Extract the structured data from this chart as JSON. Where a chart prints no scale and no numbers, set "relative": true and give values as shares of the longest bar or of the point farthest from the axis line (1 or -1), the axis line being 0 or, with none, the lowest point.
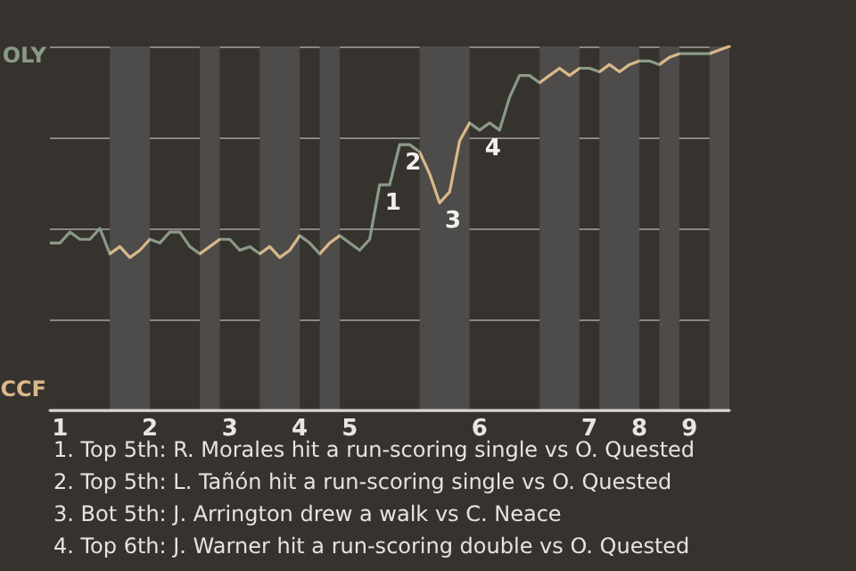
{
  "chart_data": {
    "type": "line",
    "categories": [
      null,
      "1",
      null,
      null,
      null,
      null,
      null,
      null,
      null,
      null,
      "2",
      null,
      null,
      null,
      null,
      null,
      null,
      null,
      "3",
      null,
      null,
      null,
      null,
      null,
      null,
      "4",
      null,
      null,
      null,
      null,
      "5",
      null,
      null,
      null,
      null,
      null,
      null,
      null,
      null,
      null,
      null,
      null,
      null,
      "6",
      null,
      null,
      null,
      null,
      null,
      null,
      null,
      null,
      null,
      null,
      "7",
      null,
      null,
      null,
      null,
      "8",
      null,
      null,
      null,
      null,
      "9",
      null,
      null,
      null,
      null
    ],
    "relative": true,
    "values": [
      0.46,
      0.46,
      0.49,
      0.47,
      0.47,
      0.5,
      0.43,
      0.45,
      0.42,
      0.44,
      0.47,
      0.46,
      0.49,
      0.49,
      0.45,
      0.43,
      0.45,
      0.47,
      0.47,
      0.44,
      0.45,
      0.43,
      0.45,
      0.42,
      0.44,
      0.48,
      0.46,
      0.43,
      0.46,
      0.48,
      0.46,
      0.44,
      0.47,
      0.62,
      0.62,
      0.73,
      0.73,
      0.71,
      0.65,
      0.57,
      0.6,
      0.74,
      0.79,
      0.77,
      0.79,
      0.77,
      0.86,
      0.92,
      0.92,
      0.9,
      0.92,
      0.94,
      0.92,
      0.94,
      0.94,
      0.93,
      0.95,
      0.93,
      0.95,
      0.96,
      0.96,
      0.95,
      0.97,
      0.98,
      0.98,
      0.98,
      0.98,
      0.99,
      1.0
    ],
    "colors": [
      "#8a9a88",
      "#8a9a88",
      "#8a9a88",
      "#8a9a88",
      "#8a9a88",
      "#8a9a88",
      "#d9b98a",
      "#d9b98a",
      "#d9b98a",
      "#d9b98a",
      "#8a9a88",
      "#8a9a88",
      "#8a9a88",
      "#8a9a88",
      "#8a9a88",
      "#d9b98a",
      "#d9b98a",
      "#8a9a88",
      "#8a9a88",
      "#8a9a88",
      "#8a9a88",
      "#d9b98a",
      "#d9b98a",
      "#d9b98a",
      "#d9b98a",
      "#8a9a88",
      "#8a9a88",
      "#d9b98a",
      "#d9b98a",
      "#8a9a88",
      "#8a9a88",
      "#8a9a88",
      "#8a9a88",
      "#8a9a88",
      "#8a9a88",
      "#8a9a88",
      "#8a9a88",
      "#d9b98a",
      "#d9b98a",
      "#d9b98a",
      "#d9b98a",
      "#d9b98a",
      "#8a9a88",
      "#8a9a88",
      "#8a9a88",
      "#8a9a88",
      "#8a9a88",
      "#8a9a88",
      "#8a9a88",
      "#d9b98a",
      "#d9b98a",
      "#d9b98a",
      "#d9b98a",
      "#8a9a88",
      "#8a9a88",
      "#d9b98a",
      "#d9b98a",
      "#d9b98a",
      "#d9b98a",
      "#8a9a88",
      "#8a9a88",
      "#d9b98a",
      "#d9b98a",
      "#8a9a88",
      "#8a9a88",
      "#8a9a88",
      "#d9b98a",
      "#d9b98a",
      "#d9b98a"
    ],
    "grid": "y",
    "marker": "none",
    "annotations": [
      "OLY",
      "CCF",
      {
        "text": "1",
        "y": 0.62
      },
      {
        "text": "2",
        "y": 0.73
      },
      {
        "text": "3",
        "y": 0.57
      },
      {
        "text": "4",
        "y": 0.77
      },
      "1. Top 5th: R. Morales hit a run-scoring single vs O. Quested",
      "2. Top 5th: L. Tañón hit a run-scoring single vs O. Quested",
      "3. Bot 5th: J. Arrington drew a walk vs C. Neace",
      "4. Top 6th: J. Warner hit a run-scoring double vs O. Quested"
    ]
  }
}
